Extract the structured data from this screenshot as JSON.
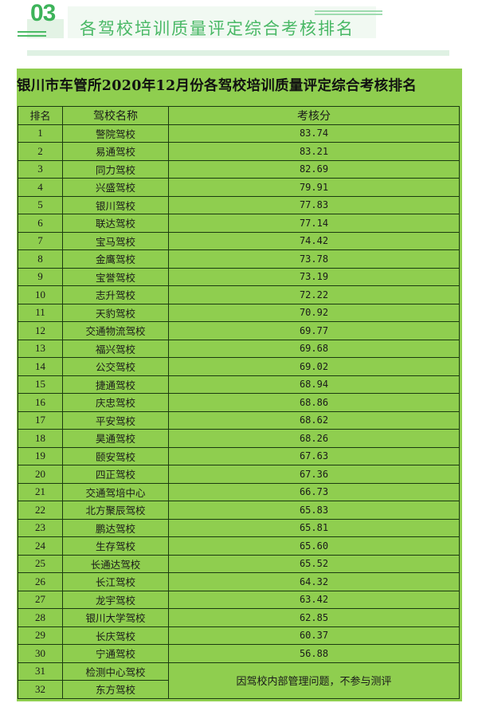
{
  "section": {
    "number": "03",
    "title": "各驾校培训质量评定综合考核排名",
    "accent_color": "#3db35a"
  },
  "sheet": {
    "title": "银川市车管所2020年12月份各驾校培训质量评定综合考核排名",
    "background_color": "#8fce4f",
    "headers": {
      "rank": "排名",
      "name": "驾校名称",
      "score": "考核分"
    },
    "rows": [
      {
        "rank": "1",
        "name": "警院驾校",
        "score": "83.74"
      },
      {
        "rank": "2",
        "name": "易通驾校",
        "score": "83.21"
      },
      {
        "rank": "3",
        "name": "同力驾校",
        "score": "82.69"
      },
      {
        "rank": "4",
        "name": "兴盛驾校",
        "score": "79.91"
      },
      {
        "rank": "5",
        "name": "银川驾校",
        "score": "77.83"
      },
      {
        "rank": "6",
        "name": "联达驾校",
        "score": "77.14"
      },
      {
        "rank": "7",
        "name": "宝马驾校",
        "score": "74.42"
      },
      {
        "rank": "8",
        "name": "金鹰驾校",
        "score": "73.78"
      },
      {
        "rank": "9",
        "name": "宝誉驾校",
        "score": "73.19"
      },
      {
        "rank": "10",
        "name": "志升驾校",
        "score": "72.22"
      },
      {
        "rank": "11",
        "name": "天豹驾校",
        "score": "70.92"
      },
      {
        "rank": "12",
        "name": "交通物流驾校",
        "score": "69.77"
      },
      {
        "rank": "13",
        "name": "福兴驾校",
        "score": "69.68"
      },
      {
        "rank": "14",
        "name": "公交驾校",
        "score": "69.02"
      },
      {
        "rank": "15",
        "name": "捷通驾校",
        "score": "68.94"
      },
      {
        "rank": "16",
        "name": "庆忠驾校",
        "score": "68.86"
      },
      {
        "rank": "17",
        "name": "平安驾校",
        "score": "68.62"
      },
      {
        "rank": "18",
        "name": "昊通驾校",
        "score": "68.26"
      },
      {
        "rank": "19",
        "name": "颐安驾校",
        "score": "67.63"
      },
      {
        "rank": "20",
        "name": "四正驾校",
        "score": "67.36"
      },
      {
        "rank": "21",
        "name": "交通驾培中心",
        "score": "66.73"
      },
      {
        "rank": "22",
        "name": "北方聚辰驾校",
        "score": "65.83"
      },
      {
        "rank": "23",
        "name": "鹏达驾校",
        "score": "65.81"
      },
      {
        "rank": "24",
        "name": "生存驾校",
        "score": "65.60"
      },
      {
        "rank": "25",
        "name": "长通达驾校",
        "score": "65.52"
      },
      {
        "rank": "26",
        "name": "长江驾校",
        "score": "64.32"
      },
      {
        "rank": "27",
        "name": "龙宇驾校",
        "score": "63.42"
      },
      {
        "rank": "28",
        "name": "银川大学驾校",
        "score": "62.85"
      },
      {
        "rank": "29",
        "name": "长庆驾校",
        "score": "60.37"
      },
      {
        "rank": "30",
        "name": "宁通驾校",
        "score": "56.88"
      }
    ],
    "excluded_rows": [
      {
        "rank": "31",
        "name": "检测中心驾校"
      },
      {
        "rank": "32",
        "name": "东方驾校"
      }
    ],
    "excluded_note": "因驾校内部管理问题，不参与测评"
  }
}
